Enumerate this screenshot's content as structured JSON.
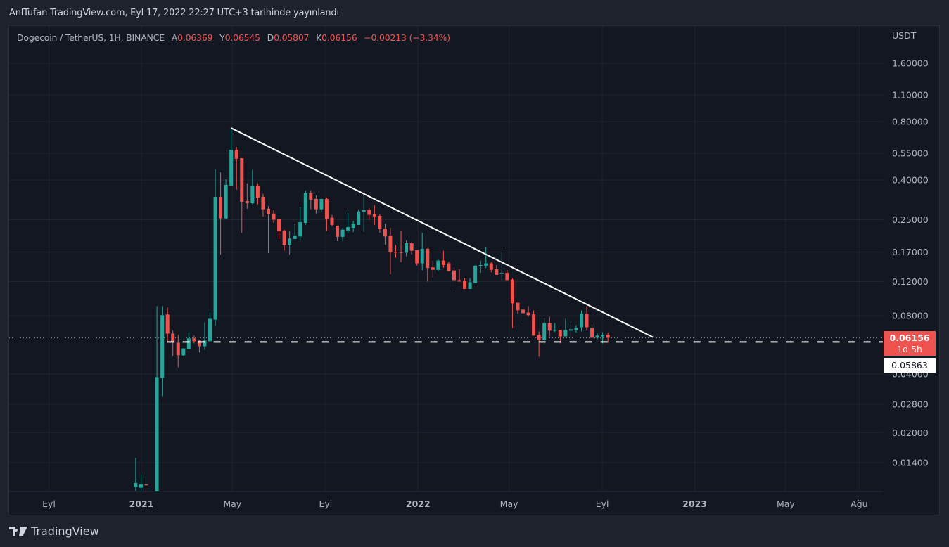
{
  "publication": {
    "title": "AnlTufan TradingView.com, Eyl 17, 2022 22:27 UTC+3 tarihinde yayınlandı"
  },
  "legend": {
    "symbol": "Dogecoin / TetherUS, 1H, BINANCE",
    "open_label": "A",
    "open": "0.06369",
    "high_label": "Y",
    "high": "0.06545",
    "low_label": "D",
    "low": "0.05807",
    "close_label": "K",
    "close": "0.06156",
    "change": "−0.00213 (−3.34%)"
  },
  "price_axis": {
    "currency": "USDT",
    "current_price": "0.06156",
    "countdown": "1d 5h",
    "line_price_label": "0.05863"
  },
  "brand": {
    "name": "TradingView",
    "icon": "tradingview-logo-icon"
  },
  "colors": {
    "up": "#26a69a",
    "down": "#ef5350",
    "background": "#131722",
    "grid": "#20242f",
    "trendline": "#ffffff"
  },
  "chart_data": {
    "type": "candlestick",
    "scale": "log",
    "grid": true,
    "ylim": [
      0.0099,
      1.75
    ],
    "y_ticks": [
      1.6,
      1.1,
      0.8,
      0.55,
      0.4,
      0.25,
      0.17,
      0.12,
      0.08,
      0.04,
      0.028,
      0.02,
      0.014
    ],
    "y_tick_labels": [
      "1.60000",
      "1.10000",
      "0.80000",
      "0.55000",
      "0.40000",
      "0.25000",
      "0.17000",
      "0.12000",
      "0.08000",
      "0.04000",
      "0.02800",
      "0.02000",
      "0.01400"
    ],
    "x_ticks": [
      {
        "date": "2020-09-01",
        "label": "Eyl"
      },
      {
        "date": "2021-01-01",
        "label": "2021"
      },
      {
        "date": "2021-05-01",
        "label": "May"
      },
      {
        "date": "2021-09-01",
        "label": "Eyl"
      },
      {
        "date": "2022-01-01",
        "label": "2022"
      },
      {
        "date": "2022-05-01",
        "label": "May"
      },
      {
        "date": "2022-09-01",
        "label": "Eyl"
      },
      {
        "date": "2023-01-01",
        "label": "2023"
      },
      {
        "date": "2023-05-01",
        "label": "May"
      },
      {
        "date": "2023-08-06",
        "label": "Ağu"
      }
    ],
    "candles_columns": [
      "date",
      "open",
      "high",
      "low",
      "close"
    ],
    "candles": [
      [
        "2020-12-21",
        0.0105,
        0.0148,
        0.01,
        0.011
      ],
      [
        "2020-12-28",
        0.0104,
        0.0122,
        0.01,
        0.0108
      ],
      [
        "2021-01-04",
        0.0108,
        0.0108,
        0.0107,
        0.0107
      ],
      [
        "2021-01-18",
        0.0093,
        0.0896,
        0.0088,
        0.0386
      ],
      [
        "2021-01-25",
        0.0383,
        0.0896,
        0.0308,
        0.0805
      ],
      [
        "2021-02-01",
        0.0812,
        0.0882,
        0.0581,
        0.0647
      ],
      [
        "2021-02-08",
        0.0647,
        0.067,
        0.0496,
        0.0581
      ],
      [
        "2021-02-15",
        0.0581,
        0.0637,
        0.0434,
        0.05
      ],
      [
        "2021-02-22",
        0.05,
        0.0543,
        0.0496,
        0.0543
      ],
      [
        "2021-03-01",
        0.0538,
        0.0658,
        0.0538,
        0.0611
      ],
      [
        "2021-03-08",
        0.0611,
        0.0632,
        0.0576,
        0.0591
      ],
      [
        "2021-03-15",
        0.0596,
        0.06,
        0.0518,
        0.0557
      ],
      [
        "2021-03-22",
        0.0557,
        0.074,
        0.0534,
        0.0596
      ],
      [
        "2021-03-29",
        0.0591,
        0.0831,
        0.0586,
        0.0771
      ],
      [
        "2021-04-05",
        0.0764,
        0.454,
        0.071,
        0.328
      ],
      [
        "2021-04-12",
        0.328,
        0.439,
        0.165,
        0.254
      ],
      [
        "2021-04-19",
        0.254,
        0.404,
        0.252,
        0.378
      ],
      [
        "2021-04-26",
        0.375,
        0.743,
        0.375,
        0.573
      ],
      [
        "2021-05-03",
        0.573,
        0.593,
        0.357,
        0.515
      ],
      [
        "2021-05-10",
        0.519,
        0.519,
        0.214,
        0.309
      ],
      [
        "2021-05-17",
        0.312,
        0.385,
        0.285,
        0.304
      ],
      [
        "2021-05-24",
        0.304,
        0.451,
        0.3,
        0.375
      ],
      [
        "2021-05-31",
        0.375,
        0.385,
        0.3,
        0.325
      ],
      [
        "2021-06-07",
        0.328,
        0.34,
        0.26,
        0.283
      ],
      [
        "2021-06-14",
        0.285,
        0.294,
        0.168,
        0.267
      ],
      [
        "2021-06-21",
        0.269,
        0.28,
        0.241,
        0.25
      ],
      [
        "2021-06-28",
        0.252,
        0.252,
        0.199,
        0.218
      ],
      [
        "2021-07-05",
        0.22,
        0.222,
        0.173,
        0.185
      ],
      [
        "2021-07-12",
        0.185,
        0.218,
        0.165,
        0.2
      ],
      [
        "2021-07-19",
        0.199,
        0.238,
        0.199,
        0.207
      ],
      [
        "2021-07-26",
        0.205,
        0.29,
        0.196,
        0.243
      ],
      [
        "2021-08-02",
        0.241,
        0.354,
        0.235,
        0.342
      ],
      [
        "2021-08-09",
        0.342,
        0.354,
        0.283,
        0.317
      ],
      [
        "2021-08-16",
        0.32,
        0.334,
        0.269,
        0.283
      ],
      [
        "2021-08-23",
        0.283,
        0.32,
        0.274,
        0.32
      ],
      [
        "2021-08-30",
        0.32,
        0.325,
        0.218,
        0.252
      ],
      [
        "2021-09-06",
        0.256,
        0.265,
        0.231,
        0.235
      ],
      [
        "2021-09-13",
        0.233,
        0.233,
        0.194,
        0.204
      ],
      [
        "2021-09-20",
        0.204,
        0.227,
        0.194,
        0.222
      ],
      [
        "2021-09-27",
        0.22,
        0.271,
        0.213,
        0.229
      ],
      [
        "2021-10-04",
        0.227,
        0.246,
        0.216,
        0.238
      ],
      [
        "2021-10-11",
        0.235,
        0.283,
        0.235,
        0.276
      ],
      [
        "2021-10-18",
        0.274,
        0.34,
        0.216,
        0.28
      ],
      [
        "2021-10-25",
        0.28,
        0.287,
        0.25,
        0.265
      ],
      [
        "2021-11-01",
        0.267,
        0.297,
        0.235,
        0.26
      ],
      [
        "2021-11-08",
        0.262,
        0.267,
        0.214,
        0.224
      ],
      [
        "2021-11-15",
        0.225,
        0.238,
        0.186,
        0.205
      ],
      [
        "2021-11-22",
        0.207,
        0.227,
        0.131,
        0.17
      ],
      [
        "2021-11-29",
        0.171,
        0.185,
        0.159,
        0.169
      ],
      [
        "2021-12-06",
        0.17,
        0.22,
        0.151,
        0.169
      ],
      [
        "2021-12-13",
        0.169,
        0.196,
        0.162,
        0.189
      ],
      [
        "2021-12-20",
        0.189,
        0.192,
        0.166,
        0.173
      ],
      [
        "2021-12-27",
        0.174,
        0.174,
        0.145,
        0.149
      ],
      [
        "2022-01-03",
        0.149,
        0.214,
        0.137,
        0.177
      ],
      [
        "2022-01-10",
        0.177,
        0.178,
        0.12,
        0.141
      ],
      [
        "2022-01-17",
        0.142,
        0.154,
        0.126,
        0.138
      ],
      [
        "2022-01-24",
        0.138,
        0.157,
        0.135,
        0.154
      ],
      [
        "2022-01-31",
        0.154,
        0.173,
        0.141,
        0.146
      ],
      [
        "2022-02-07",
        0.149,
        0.152,
        0.135,
        0.136
      ],
      [
        "2022-02-14",
        0.137,
        0.142,
        0.106,
        0.122
      ],
      [
        "2022-02-21",
        0.122,
        0.139,
        0.12,
        0.12
      ],
      [
        "2022-02-28",
        0.121,
        0.125,
        0.11,
        0.11
      ],
      [
        "2022-03-07",
        0.11,
        0.125,
        0.11,
        0.119
      ],
      [
        "2022-03-14",
        0.118,
        0.145,
        0.118,
        0.145
      ],
      [
        "2022-03-21",
        0.144,
        0.154,
        0.133,
        0.146
      ],
      [
        "2022-03-28",
        0.145,
        0.18,
        0.141,
        0.149
      ],
      [
        "2022-04-04",
        0.149,
        0.151,
        0.134,
        0.138
      ],
      [
        "2022-04-11",
        0.139,
        0.146,
        0.13,
        0.13
      ],
      [
        "2022-04-18",
        0.132,
        0.171,
        0.122,
        0.133
      ],
      [
        "2022-04-25",
        0.133,
        0.138,
        0.122,
        0.122
      ],
      [
        "2022-05-02",
        0.123,
        0.125,
        0.0692,
        0.0927
      ],
      [
        "2022-05-09",
        0.0934,
        0.0934,
        0.0818,
        0.0853
      ],
      [
        "2022-05-16",
        0.086,
        0.0903,
        0.0752,
        0.0825
      ],
      [
        "2022-05-23",
        0.0831,
        0.0896,
        0.0791,
        0.0805
      ],
      [
        "2022-05-30",
        0.0812,
        0.0853,
        0.0632,
        0.0632
      ],
      [
        "2022-06-06",
        0.0637,
        0.0664,
        0.0492,
        0.06
      ],
      [
        "2022-06-13",
        0.06,
        0.0777,
        0.0576,
        0.0734
      ],
      [
        "2022-06-20",
        0.0734,
        0.0791,
        0.0626,
        0.067
      ],
      [
        "2022-06-27",
        0.067,
        0.0734,
        0.0658,
        0.0675
      ],
      [
        "2022-07-04",
        0.0675,
        0.0675,
        0.0576,
        0.0626
      ],
      [
        "2022-07-11",
        0.0626,
        0.0771,
        0.0626,
        0.0675
      ],
      [
        "2022-07-18",
        0.067,
        0.0746,
        0.06,
        0.0681
      ],
      [
        "2022-07-25",
        0.0675,
        0.0716,
        0.0653,
        0.0692
      ],
      [
        "2022-08-01",
        0.0698,
        0.0853,
        0.0664,
        0.0818
      ],
      [
        "2022-08-08",
        0.0818,
        0.0896,
        0.067,
        0.0698
      ],
      [
        "2022-08-15",
        0.0692,
        0.0722,
        0.0616,
        0.0616
      ],
      [
        "2022-08-22",
        0.0616,
        0.0647,
        0.0606,
        0.0632
      ],
      [
        "2022-08-29",
        0.0626,
        0.0658,
        0.0576,
        0.0637
      ],
      [
        "2022-09-05",
        0.06369,
        0.06545,
        0.05807,
        0.06156
      ]
    ],
    "trendline": {
      "from": {
        "date": "2021-04-29",
        "price": 0.743
      },
      "to": {
        "date": "2022-11-07",
        "price": 0.062
      }
    },
    "horizontal_line": {
      "price": 0.05863,
      "from_date": "2021-02-04",
      "style": "dashed"
    },
    "last_price_line": {
      "price": 0.06156,
      "style": "dotted"
    }
  }
}
